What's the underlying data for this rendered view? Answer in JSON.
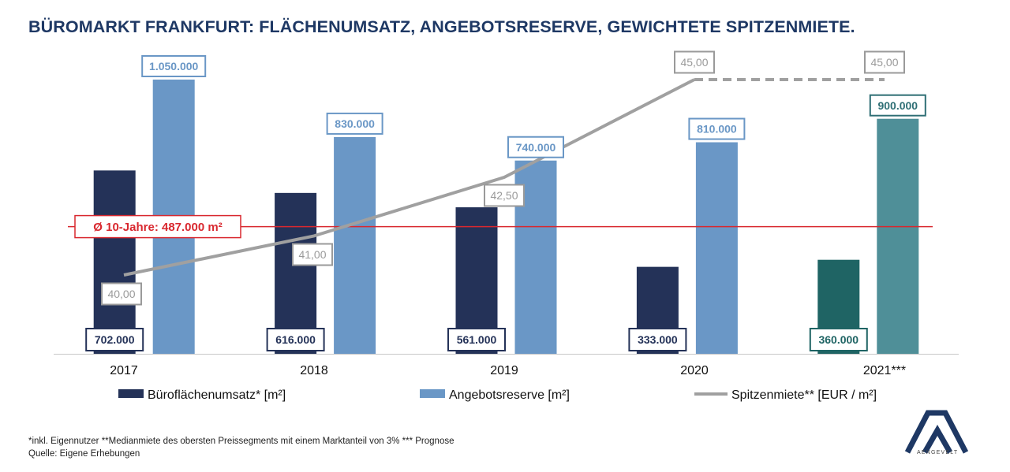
{
  "title": "BÜROMARKT FRANKFURT: FLÄCHENUMSATZ, ANGEBOTSRESERVE, GEWICHTETE SPITZENMIETE.",
  "footnote_1": "*inkl. Eigennutzer **Medianmiete des obersten Preissegments mit einem Marktanteil von 3% *** Prognose",
  "footnote_2": "Quelle: Eigene Erhebungen",
  "logo_text": "AENGEVELT",
  "colors": {
    "title": "#1e3864",
    "umsatz": "#243258",
    "reserve": "#6a97c6",
    "umsatz_forecast": "#1f6464",
    "reserve_forecast": "#4f8f98",
    "spitzenmiete": "#a0a0a0",
    "average_line": "#d9282f"
  },
  "chart_data": {
    "type": "bar",
    "categories": [
      "2017",
      "2018",
      "2019",
      "2020",
      "2021***"
    ],
    "series": [
      {
        "name": "Büroflächenumsatz* [m²]",
        "values": [
          702000,
          616000,
          561000,
          333000,
          360000
        ],
        "labels": [
          "702.000",
          "616.000",
          "561.000",
          "333.000",
          "360.000"
        ]
      },
      {
        "name": "Angebotsreserve [m²]",
        "values": [
          1050000,
          830000,
          740000,
          810000,
          900000
        ],
        "labels": [
          "1.050.000",
          "830.000",
          "740.000",
          "810.000",
          "900.000"
        ]
      },
      {
        "name": "Spitzenmiete** [EUR / m²]",
        "type": "line",
        "values": [
          40.0,
          41.0,
          42.5,
          45.0,
          45.0
        ],
        "labels": [
          "40,00",
          "41,00",
          "42,50",
          "45,00",
          "45,00"
        ],
        "forecast_dashed_last_segment": true
      }
    ],
    "reference_line": {
      "value": 487000,
      "label": "Ø 10-Jahre: 487.000 m²"
    },
    "forecast_category": "2021***",
    "ylim": [
      0,
      1050000
    ],
    "y2lim": [
      38.8,
      45.0
    ],
    "grid": false,
    "legend_position": "bottom"
  }
}
